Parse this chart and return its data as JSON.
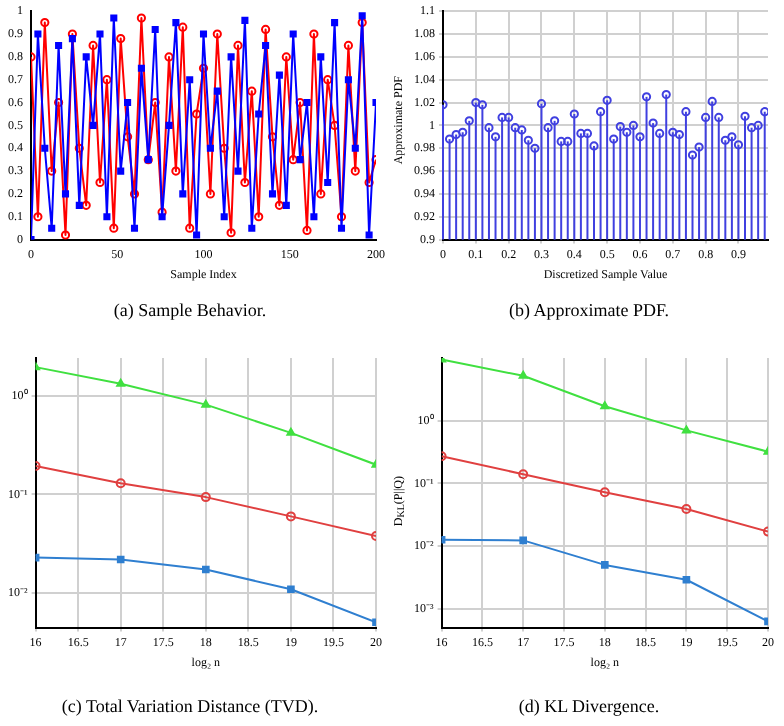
{
  "chart_data": [
    {
      "type": "line",
      "title": "(a) Sample Behavior.",
      "xlabel": "Sample Index",
      "x": [
        0,
        4,
        8,
        12,
        16,
        20,
        24,
        28,
        32,
        36,
        40,
        44,
        48,
        52,
        56,
        60,
        64,
        68,
        72,
        76,
        80,
        84,
        88,
        92,
        96,
        100,
        104,
        108,
        112,
        116,
        120,
        124,
        128,
        132,
        136,
        140,
        144,
        148,
        152,
        156,
        160,
        164,
        168,
        172,
        176,
        180,
        184,
        188,
        192,
        196,
        200
      ],
      "series": [
        {
          "color": "#0000ff",
          "marker": "square",
          "values": [
            0.0,
            0.9,
            0.4,
            0.05,
            0.85,
            0.2,
            0.88,
            0.15,
            0.8,
            0.5,
            0.9,
            0.1,
            0.97,
            0.3,
            0.6,
            0.05,
            0.75,
            0.35,
            0.92,
            0.1,
            0.5,
            0.95,
            0.2,
            0.7,
            0.02,
            0.9,
            0.4,
            0.65,
            0.1,
            0.8,
            0.3,
            0.96,
            0.05,
            0.55,
            0.85,
            0.2,
            0.72,
            0.15,
            0.9,
            0.35,
            0.6,
            0.1,
            0.8,
            0.25,
            0.95,
            0.05,
            0.7,
            0.4,
            0.98,
            0.02,
            0.6
          ]
        },
        {
          "color": "#ff0000",
          "marker": "circle",
          "values": [
            0.8,
            0.1,
            0.95,
            0.3,
            0.6,
            0.02,
            0.9,
            0.4,
            0.15,
            0.85,
            0.25,
            0.7,
            0.05,
            0.88,
            0.45,
            0.2,
            0.97,
            0.35,
            0.6,
            0.12,
            0.8,
            0.3,
            0.93,
            0.05,
            0.55,
            0.75,
            0.2,
            0.9,
            0.4,
            0.03,
            0.85,
            0.25,
            0.65,
            0.1,
            0.92,
            0.45,
            0.15,
            0.8,
            0.35,
            0.6,
            0.04,
            0.9,
            0.2,
            0.7,
            0.5,
            0.1,
            0.85,
            0.3,
            0.95,
            0.25,
            0.35
          ]
        }
      ],
      "xlim": [
        0,
        200
      ],
      "xticks": [
        0,
        50,
        100,
        150,
        200
      ],
      "ylim": [
        0,
        1
      ],
      "yticks": [
        0,
        0.1,
        0.2,
        0.3,
        0.4,
        0.5,
        0.6,
        0.7,
        0.8,
        0.9,
        1
      ],
      "grid": false
    },
    {
      "type": "lollipop",
      "title": "(b) Approximate PDF.",
      "xlabel": "Discretized Sample Value",
      "ylabel": "Approximate PDF",
      "x": [
        0,
        0.02,
        0.04,
        0.06,
        0.08,
        0.1,
        0.12,
        0.14,
        0.16,
        0.18,
        0.2,
        0.22,
        0.24,
        0.26,
        0.28,
        0.3,
        0.32,
        0.34,
        0.36,
        0.38,
        0.4,
        0.42,
        0.44,
        0.46,
        0.48,
        0.5,
        0.52,
        0.54,
        0.56,
        0.58,
        0.6,
        0.62,
        0.64,
        0.66,
        0.68,
        0.7,
        0.72,
        0.74,
        0.76,
        0.78,
        0.8,
        0.82,
        0.84,
        0.86,
        0.88,
        0.9,
        0.92,
        0.94,
        0.96,
        0.98
      ],
      "series": [
        {
          "color": "#4040e0",
          "marker": "circle",
          "values": [
            1.018,
            0.988,
            0.992,
            0.994,
            1.004,
            1.02,
            1.018,
            0.998,
            0.99,
            1.007,
            1.007,
            0.998,
            0.996,
            0.987,
            0.98,
            1.019,
            0.998,
            1.004,
            0.986,
            0.986,
            1.01,
            0.993,
            0.993,
            0.982,
            1.012,
            1.022,
            0.988,
            0.999,
            0.994,
            1.0,
            0.99,
            1.025,
            1.002,
            0.993,
            1.027,
            0.994,
            0.992,
            1.012,
            0.974,
            0.981,
            1.007,
            1.021,
            1.007,
            0.987,
            0.99,
            0.983,
            1.008,
            0.998,
            1.0,
            1.012
          ]
        }
      ],
      "xlim": [
        0,
        0.99
      ],
      "xticks": [
        0,
        0.1,
        0.2,
        0.3,
        0.4,
        0.5,
        0.6,
        0.7,
        0.8,
        0.9
      ],
      "ylim": [
        0.9,
        1.1
      ],
      "yticks": [
        0.9,
        0.92,
        0.94,
        0.96,
        0.98,
        1,
        1.02,
        1.04,
        1.06,
        1.08,
        1.1
      ],
      "grid": true
    },
    {
      "type": "line",
      "title": "(c) Total Variation Distance (TVD).",
      "xlabel": "log₂ n",
      "x": [
        16,
        17,
        18,
        19,
        20
      ],
      "log": "y",
      "series": [
        {
          "color": "#2f7fd0",
          "marker": "square",
          "values": [
            0.023,
            0.022,
            0.0174,
            0.011,
            0.0051
          ]
        },
        {
          "color": "#e04040",
          "marker": "circle",
          "values": [
            0.194,
            0.13,
            0.094,
            0.06,
            0.038
          ]
        },
        {
          "color": "#40e040",
          "marker": "triangle",
          "values": [
            1.94,
            1.32,
            0.81,
            0.42,
            0.2
          ]
        }
      ],
      "xlim": [
        16,
        20
      ],
      "xticks": [
        16,
        16.5,
        17,
        17.5,
        18,
        18.5,
        19,
        19.5,
        20
      ],
      "ylim": [
        0.0045,
        2.4
      ],
      "yticks": [
        {
          "value": 0.01,
          "label": "10⁻²"
        },
        {
          "value": 0.1,
          "label": "10⁻¹"
        },
        {
          "value": 1,
          "label": "10⁰"
        }
      ],
      "grid": true
    },
    {
      "type": "line",
      "title": "(d) KL Divergence.",
      "xlabel": "log₂ n",
      "ylabel": "D$_{KL}$(P||Q)",
      "x": [
        16,
        17,
        18,
        19,
        20
      ],
      "log": "y",
      "series": [
        {
          "color": "#2f7fd0",
          "marker": "square",
          "values": [
            0.0126,
            0.0123,
            0.005,
            0.0029,
            0.00063
          ]
        },
        {
          "color": "#e04040",
          "marker": "circle",
          "values": [
            0.27,
            0.14,
            0.072,
            0.039,
            0.017
          ]
        },
        {
          "color": "#40e040",
          "marker": "triangle",
          "values": [
            9.5,
            5.2,
            1.7,
            0.7,
            0.32
          ]
        }
      ],
      "xlim": [
        16,
        20
      ],
      "xticks": [
        16,
        16.5,
        17,
        17.5,
        18,
        18.5,
        19,
        19.5,
        20
      ],
      "ylim": [
        0.0005,
        10
      ],
      "yticks": [
        {
          "value": 0.001,
          "label": "10⁻³"
        },
        {
          "value": 0.01,
          "label": "10⁻²"
        },
        {
          "value": 0.1,
          "label": "10⁻¹"
        },
        {
          "value": 1,
          "label": "10⁰"
        }
      ],
      "grid": true
    }
  ]
}
